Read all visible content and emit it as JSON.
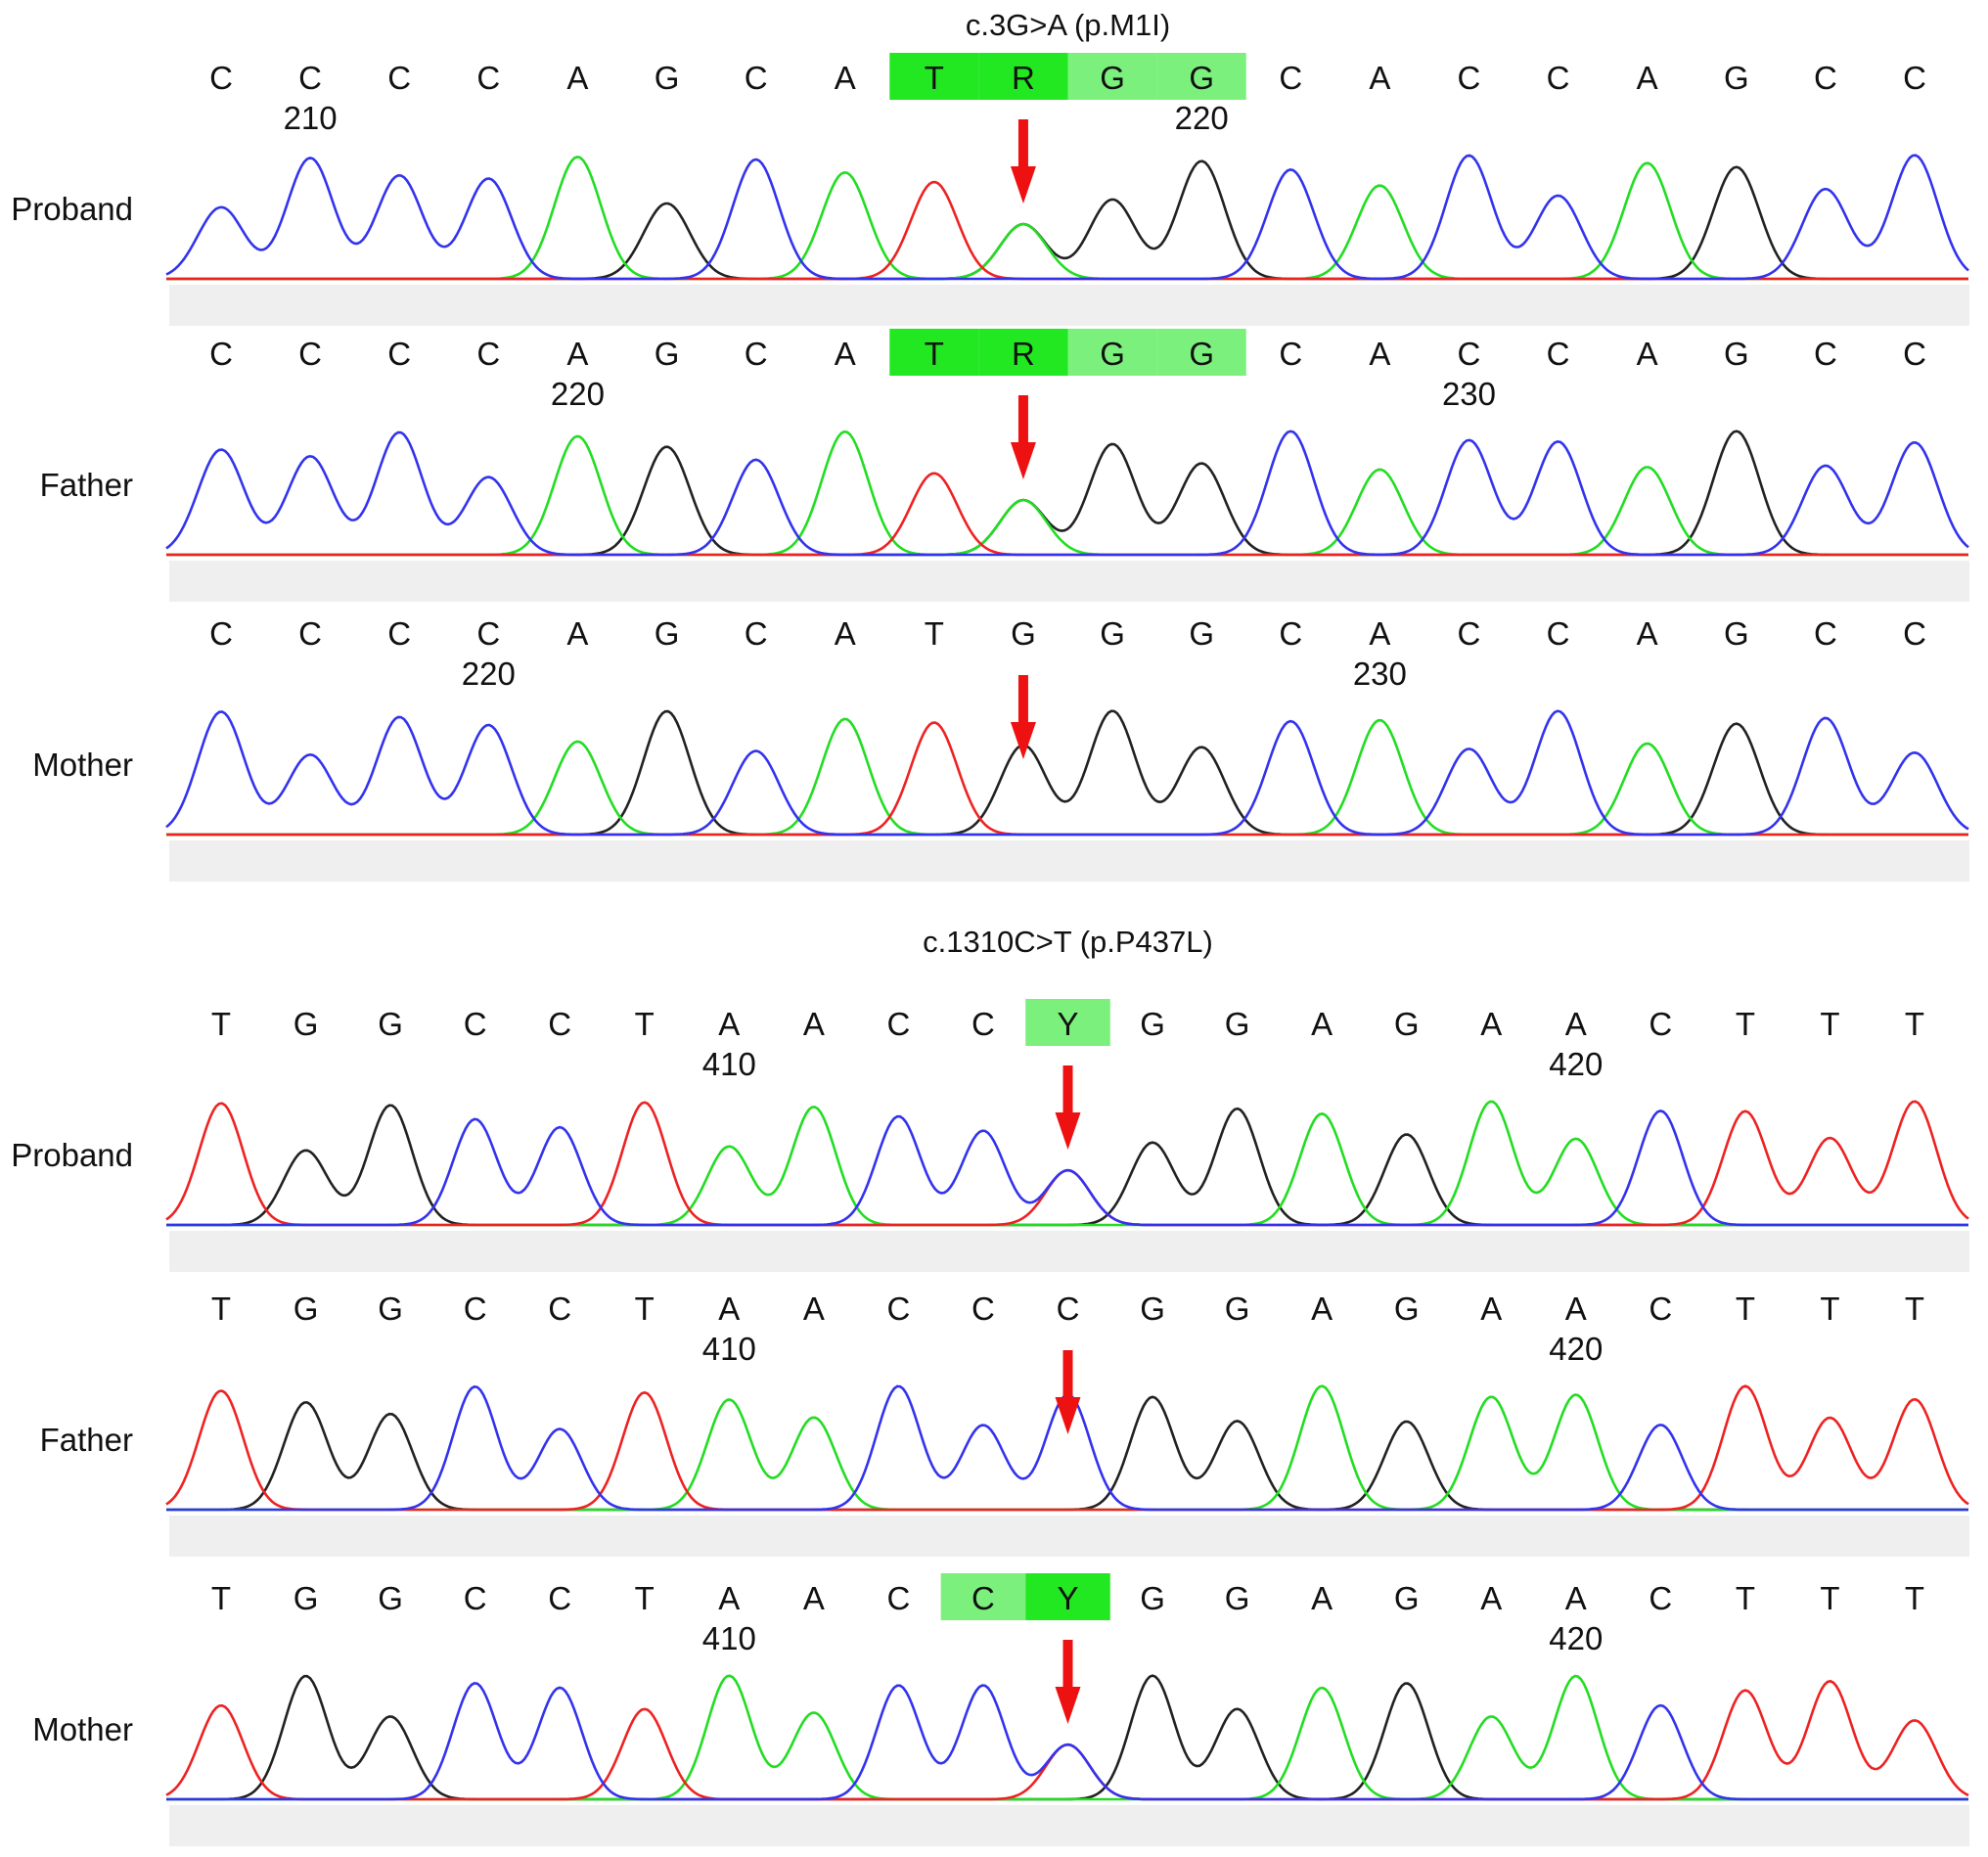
{
  "colors": {
    "A": "#22dd22",
    "C": "#3333ee",
    "G": "#222222",
    "T": "#ee2222",
    "highlight_dark": "#22e822",
    "highlight_light": "#7cf07c",
    "arrow": "#ee1111",
    "band": "#efefef"
  },
  "panels": [
    {
      "title": "c.3G>A (p.M1I)",
      "tracks": [
        {
          "label": "Proband",
          "bases": [
            "C",
            "C",
            "C",
            "C",
            "A",
            "G",
            "C",
            "A",
            "T",
            "R",
            "G",
            "G",
            "C",
            "A",
            "C",
            "C",
            "A",
            "G",
            "C",
            "C"
          ],
          "positions": [
            {
              "i": 1,
              "label": "210"
            },
            {
              "i": 11,
              "label": "220"
            }
          ],
          "highlight": [
            {
              "i": 8,
              "tone": "dark"
            },
            {
              "i": 9,
              "tone": "dark"
            },
            {
              "i": 10,
              "tone": "light"
            },
            {
              "i": 11,
              "tone": "light"
            }
          ],
          "arrow_index": 9
        },
        {
          "label": "Father",
          "bases": [
            "C",
            "C",
            "C",
            "C",
            "A",
            "G",
            "C",
            "A",
            "T",
            "R",
            "G",
            "G",
            "C",
            "A",
            "C",
            "C",
            "A",
            "G",
            "C",
            "C"
          ],
          "positions": [
            {
              "i": 4,
              "label": "220"
            },
            {
              "i": 14,
              "label": "230"
            }
          ],
          "highlight": [
            {
              "i": 8,
              "tone": "dark"
            },
            {
              "i": 9,
              "tone": "dark"
            },
            {
              "i": 10,
              "tone": "light"
            },
            {
              "i": 11,
              "tone": "light"
            }
          ],
          "arrow_index": 9
        },
        {
          "label": "Mother",
          "bases": [
            "C",
            "C",
            "C",
            "C",
            "A",
            "G",
            "C",
            "A",
            "T",
            "G",
            "G",
            "G",
            "C",
            "A",
            "C",
            "C",
            "A",
            "G",
            "C",
            "C"
          ],
          "positions": [
            {
              "i": 3,
              "label": "220"
            },
            {
              "i": 13,
              "label": "230"
            }
          ],
          "highlight": [],
          "arrow_index": 9
        }
      ]
    },
    {
      "title": "c.1310C>T (p.P437L)",
      "tracks": [
        {
          "label": "Proband",
          "bases": [
            "T",
            "G",
            "G",
            "C",
            "C",
            "T",
            "A",
            "A",
            "C",
            "C",
            "Y",
            "G",
            "G",
            "A",
            "G",
            "A",
            "A",
            "C",
            "T",
            "T",
            "T"
          ],
          "positions": [
            {
              "i": 6,
              "label": "410"
            },
            {
              "i": 16,
              "label": "420"
            }
          ],
          "highlight": [
            {
              "i": 10,
              "tone": "light"
            }
          ],
          "arrow_index": 10
        },
        {
          "label": "Father",
          "bases": [
            "T",
            "G",
            "G",
            "C",
            "C",
            "T",
            "A",
            "A",
            "C",
            "C",
            "C",
            "G",
            "G",
            "A",
            "G",
            "A",
            "A",
            "C",
            "T",
            "T",
            "T"
          ],
          "positions": [
            {
              "i": 6,
              "label": "410"
            },
            {
              "i": 16,
              "label": "420"
            }
          ],
          "highlight": [],
          "arrow_index": 10
        },
        {
          "label": "Mother",
          "bases": [
            "T",
            "G",
            "G",
            "C",
            "C",
            "T",
            "A",
            "A",
            "C",
            "C",
            "Y",
            "G",
            "G",
            "A",
            "G",
            "A",
            "A",
            "C",
            "T",
            "T",
            "T"
          ],
          "positions": [
            {
              "i": 6,
              "label": "410"
            },
            {
              "i": 16,
              "label": "420"
            }
          ],
          "highlight": [
            {
              "i": 9,
              "tone": "light"
            },
            {
              "i": 10,
              "tone": "dark"
            }
          ],
          "arrow_index": 10
        }
      ]
    }
  ]
}
